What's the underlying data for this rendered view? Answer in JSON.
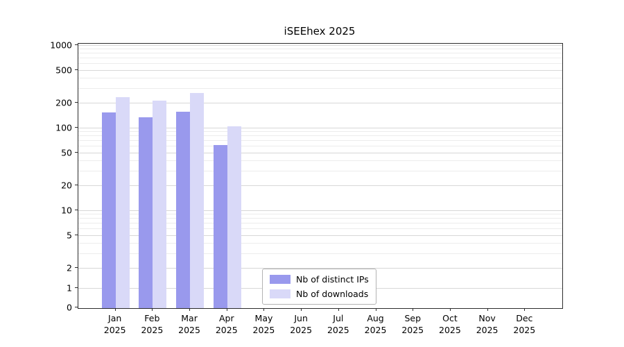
{
  "chart_data": {
    "type": "bar",
    "title": "iSEEhex 2025",
    "categories": [
      "Jan",
      "Feb",
      "Mar",
      "Apr",
      "May",
      "Jun",
      "Jul",
      "Aug",
      "Sep",
      "Oct",
      "Nov",
      "Dec"
    ],
    "year_label": "2025",
    "series": [
      {
        "name": "Nb of distinct IPs",
        "color": "#9999ed",
        "values": [
          155,
          135,
          160,
          63,
          0,
          0,
          0,
          0,
          0,
          0,
          0,
          0
        ]
      },
      {
        "name": "Nb of downloads",
        "color": "#d9d9f8",
        "values": [
          240,
          215,
          265,
          105,
          0,
          0,
          0,
          0,
          0,
          0,
          0,
          0
        ]
      }
    ],
    "y_ticks": [
      0,
      1,
      2,
      5,
      10,
      20,
      50,
      100,
      200,
      500,
      1000
    ],
    "y_minor_ticks": [
      3,
      4,
      6,
      7,
      8,
      9,
      30,
      40,
      60,
      70,
      80,
      90,
      300,
      400,
      600,
      700,
      800,
      900
    ],
    "y_scale": "symlog",
    "ylim": [
      0,
      1200
    ],
    "grid": "horizontal",
    "legend_position": "bottom-center",
    "colors": {
      "bar_dark": "#9999ed",
      "bar_light": "#d9d9f8",
      "grid_major": "#d7d7d7",
      "grid_minor": "#ececec",
      "spine": "#2b2b2b"
    }
  }
}
